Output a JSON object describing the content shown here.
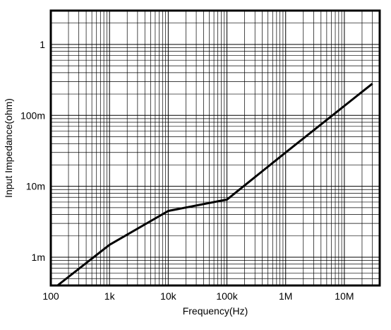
{
  "chart_data": {
    "type": "line",
    "xlabel": "Frequency(Hz)",
    "ylabel": "Input Impedance(ohm)",
    "x_scale": "log",
    "y_scale": "log",
    "xlim": [
      100,
      40000000
    ],
    "ylim": [
      0.0004,
      3
    ],
    "grid": true,
    "x_ticks": [
      {
        "value": 100,
        "label": "100"
      },
      {
        "value": 1000,
        "label": "1k"
      },
      {
        "value": 10000,
        "label": "10k"
      },
      {
        "value": 100000,
        "label": "100k"
      },
      {
        "value": 1000000,
        "label": "1M"
      },
      {
        "value": 10000000,
        "label": "10M"
      }
    ],
    "y_ticks": [
      {
        "value": 0.001,
        "label": "1m"
      },
      {
        "value": 0.01,
        "label": "10m"
      },
      {
        "value": 0.1,
        "label": "100m"
      },
      {
        "value": 1,
        "label": "1"
      }
    ],
    "series": [
      {
        "x": [
          130,
          1000,
          10000,
          100000,
          1000000,
          30000000
        ],
        "y": [
          0.0004,
          0.0015,
          0.0045,
          0.0065,
          0.03,
          0.28
        ]
      }
    ]
  }
}
